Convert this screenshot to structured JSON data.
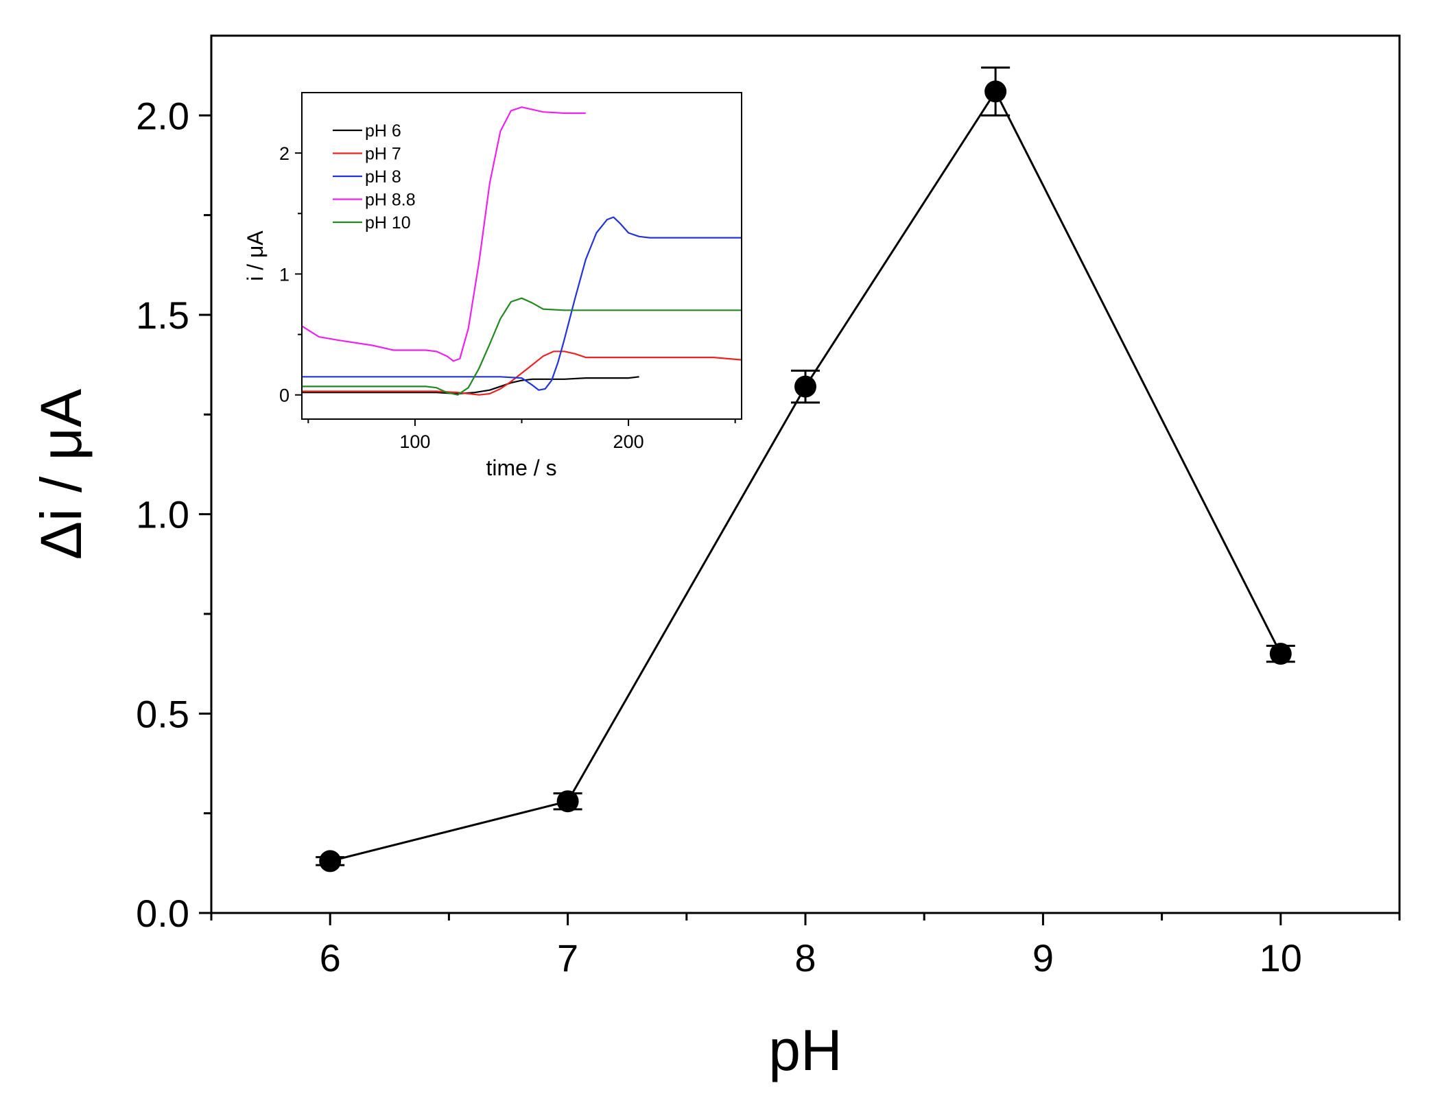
{
  "chart_data": [
    {
      "id": "main",
      "type": "line",
      "title": "",
      "xlabel": "pH",
      "ylabel": "Δi / μA",
      "xlim": [
        5.5,
        10.5
      ],
      "ylim": [
        0.0,
        2.2
      ],
      "xticks": [
        6,
        7,
        8,
        9,
        10
      ],
      "xtick_labels": [
        "6",
        "7",
        "8",
        "9",
        "10"
      ],
      "yticks": [
        0.0,
        0.5,
        1.0,
        1.5,
        2.0
      ],
      "ytick_labels": [
        "0.0",
        "0.5",
        "1.0",
        "1.5",
        "2.0"
      ],
      "grid": false,
      "series": [
        {
          "name": "Δi",
          "color": "#000000",
          "marker": "circle",
          "x": [
            6,
            7,
            8,
            8.8,
            10
          ],
          "y": [
            0.13,
            0.28,
            1.32,
            2.06,
            0.65
          ],
          "yerr": [
            0.01,
            0.02,
            0.04,
            0.06,
            0.02
          ]
        }
      ]
    },
    {
      "id": "inset",
      "type": "line",
      "title": "",
      "xlabel": "time / s",
      "ylabel": "i / μA",
      "xlim": [
        47,
        253
      ],
      "ylim": [
        -0.2,
        2.5
      ],
      "xticks": [
        100,
        200
      ],
      "xtick_labels": [
        "100",
        "200"
      ],
      "yticks": [
        0,
        1,
        2
      ],
      "ytick_labels": [
        "0",
        "1",
        "2"
      ],
      "grid": false,
      "legend_position": "top-left",
      "series": [
        {
          "name": "pH 6",
          "color": "#000000",
          "x": [
            47,
            80,
            110,
            120,
            128,
            135,
            140,
            145,
            150,
            155,
            160,
            170,
            180,
            190,
            200,
            205
          ],
          "y": [
            0.02,
            0.02,
            0.02,
            0.01,
            0.02,
            0.04,
            0.07,
            0.1,
            0.12,
            0.13,
            0.13,
            0.13,
            0.14,
            0.14,
            0.14,
            0.15
          ]
        },
        {
          "name": "pH 7",
          "color": "#ee2222",
          "x": [
            47,
            80,
            110,
            120,
            130,
            135,
            140,
            145,
            150,
            155,
            160,
            165,
            170,
            175,
            180,
            200,
            220,
            240,
            253
          ],
          "y": [
            0.03,
            0.03,
            0.03,
            0.02,
            0.0,
            0.01,
            0.05,
            0.11,
            0.18,
            0.25,
            0.32,
            0.36,
            0.36,
            0.34,
            0.31,
            0.31,
            0.31,
            0.31,
            0.29
          ]
        },
        {
          "name": "pH 8",
          "color": "#2233dd",
          "x": [
            47,
            80,
            110,
            140,
            150,
            155,
            158,
            161,
            164,
            167,
            170,
            175,
            180,
            185,
            190,
            193,
            196,
            200,
            205,
            210,
            220,
            240,
            253
          ],
          "y": [
            0.15,
            0.15,
            0.15,
            0.15,
            0.14,
            0.08,
            0.04,
            0.05,
            0.12,
            0.27,
            0.46,
            0.8,
            1.12,
            1.34,
            1.45,
            1.47,
            1.42,
            1.34,
            1.31,
            1.3,
            1.3,
            1.3,
            1.3
          ]
        },
        {
          "name": "pH 8.8",
          "color": "#ee22ee",
          "x": [
            47,
            55,
            65,
            80,
            90,
            100,
            105,
            110,
            115,
            118,
            121,
            125,
            130,
            135,
            140,
            145,
            150,
            155,
            160,
            170,
            180
          ],
          "y": [
            0.57,
            0.48,
            0.45,
            0.41,
            0.37,
            0.37,
            0.37,
            0.36,
            0.32,
            0.28,
            0.3,
            0.55,
            1.1,
            1.75,
            2.18,
            2.35,
            2.38,
            2.36,
            2.34,
            2.33,
            2.33
          ]
        },
        {
          "name": "pH 10",
          "color": "#228822",
          "x": [
            47,
            80,
            105,
            110,
            115,
            120,
            125,
            130,
            135,
            140,
            145,
            150,
            155,
            160,
            170,
            200,
            253
          ],
          "y": [
            0.07,
            0.07,
            0.07,
            0.06,
            0.02,
            0.0,
            0.06,
            0.22,
            0.42,
            0.63,
            0.77,
            0.8,
            0.76,
            0.71,
            0.7,
            0.7,
            0.7
          ]
        }
      ]
    }
  ]
}
